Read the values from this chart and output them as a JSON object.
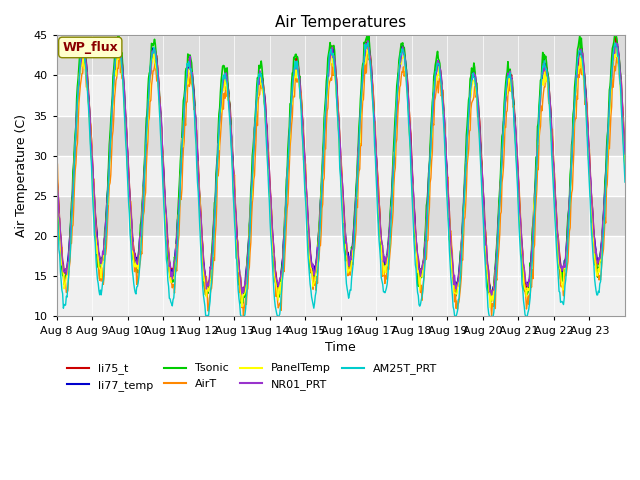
{
  "title": "Air Temperatures",
  "ylabel": "Air Temperature (C)",
  "xlabel": "Time",
  "ylim": [
    10,
    45
  ],
  "yticks": [
    10,
    15,
    20,
    25,
    30,
    35,
    40,
    45
  ],
  "xtick_labels": [
    "Aug 8",
    "Aug 9",
    "Aug 10",
    "Aug 11",
    "Aug 12",
    "Aug 13",
    "Aug 14",
    "Aug 15",
    "Aug 16",
    "Aug 17",
    "Aug 18",
    "Aug 19",
    "Aug 20",
    "Aug 21",
    "Aug 22",
    "Aug 23"
  ],
  "wp_flux_label": "WP_flux",
  "wp_flux_bg": "#FFFFCC",
  "wp_flux_text_color": "#8B0000",
  "series_colors": {
    "li75_t": "#CC0000",
    "li77_temp": "#0000CC",
    "Tsonic": "#00CC00",
    "AirT": "#FF8800",
    "PanelTemp": "#FFFF00",
    "NR01_PRT": "#9933CC",
    "AM25T_PRT": "#00CCCC"
  },
  "bg_color": "#FFFFFF",
  "plot_bg_color": "#F0F0F0",
  "grid_color": "#FFFFFF",
  "band_color": "#DCDCDC",
  "n_days": 16,
  "pts_per_day": 48
}
